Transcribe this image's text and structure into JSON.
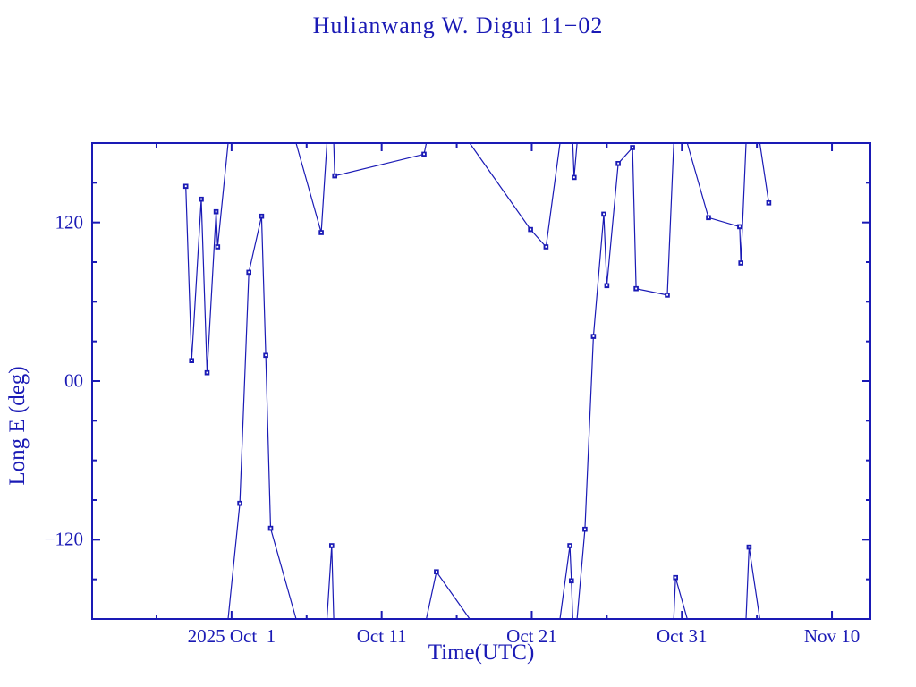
{
  "title": "Hulianwang W. Digui 11−02",
  "colors": {
    "plot": "#1a1ab5",
    "background": "#ffffff"
  },
  "chart_data": {
    "type": "line",
    "title": "Hulianwang W. Digui 11−02",
    "xlabel": "Time(UTC)",
    "ylabel": "Long E (deg)",
    "x_units": "days relative to 2025 Oct 1 00:00 UTC",
    "xlim": [
      -9.29,
      42.56
    ],
    "ylim": [
      -180,
      180
    ],
    "wrap_at": 180,
    "grid": false,
    "legend": "none",
    "x_major_ticks": [
      {
        "day": 0,
        "label": "2025 Oct  1"
      },
      {
        "day": 10,
        "label": "Oct 11"
      },
      {
        "day": 20,
        "label": "Oct 21"
      },
      {
        "day": 30,
        "label": "Oct 31"
      },
      {
        "day": 40,
        "label": "Nov 10"
      }
    ],
    "x_minor_ticks": [
      -5,
      5,
      15,
      25,
      35
    ],
    "y_major_ticks": [
      {
        "value": 120,
        "label": "120"
      },
      {
        "value": 0,
        "label": "00"
      },
      {
        "value": -120,
        "label": "−120"
      }
    ],
    "y_minor_ticks": [
      -150,
      -90,
      -60,
      -30,
      30,
      60,
      90,
      150
    ],
    "series": [
      {
        "name": "longitude-east-deg",
        "marker": "square",
        "points": [
          [
            -3.05,
            147.3
          ],
          [
            -2.66,
            15.4
          ],
          [
            -2.02,
            137.6
          ],
          [
            -1.63,
            6.3
          ],
          [
            -1.03,
            128.1
          ],
          [
            -0.93,
            101.5
          ],
          [
            0.55,
            -92.5
          ],
          [
            1.15,
            82.3
          ],
          [
            2.0,
            124.7
          ],
          [
            2.28,
            19.4
          ],
          [
            2.6,
            -111.4
          ],
          [
            5.97,
            112.3
          ],
          [
            6.67,
            -124.5
          ],
          [
            6.87,
            155.2
          ],
          [
            12.82,
            171.6
          ],
          [
            13.65,
            -144.3
          ],
          [
            19.92,
            114.6
          ],
          [
            20.95,
            101.5
          ],
          [
            22.54,
            -124.5
          ],
          [
            22.64,
            -151.1
          ],
          [
            22.82,
            154.0
          ],
          [
            23.54,
            -112.1
          ],
          [
            24.11,
            33.8
          ],
          [
            24.8,
            126.3
          ],
          [
            25.0,
            72.2
          ],
          [
            25.76,
            164.6
          ],
          [
            26.71,
            176.6
          ],
          [
            26.95,
            69.9
          ],
          [
            29.03,
            65.0
          ],
          [
            29.58,
            -148.7
          ],
          [
            31.77,
            123.6
          ],
          [
            33.85,
            116.8
          ],
          [
            33.93,
            89.3
          ],
          [
            34.48,
            -125.6
          ],
          [
            35.79,
            134.8
          ]
        ]
      }
    ]
  }
}
